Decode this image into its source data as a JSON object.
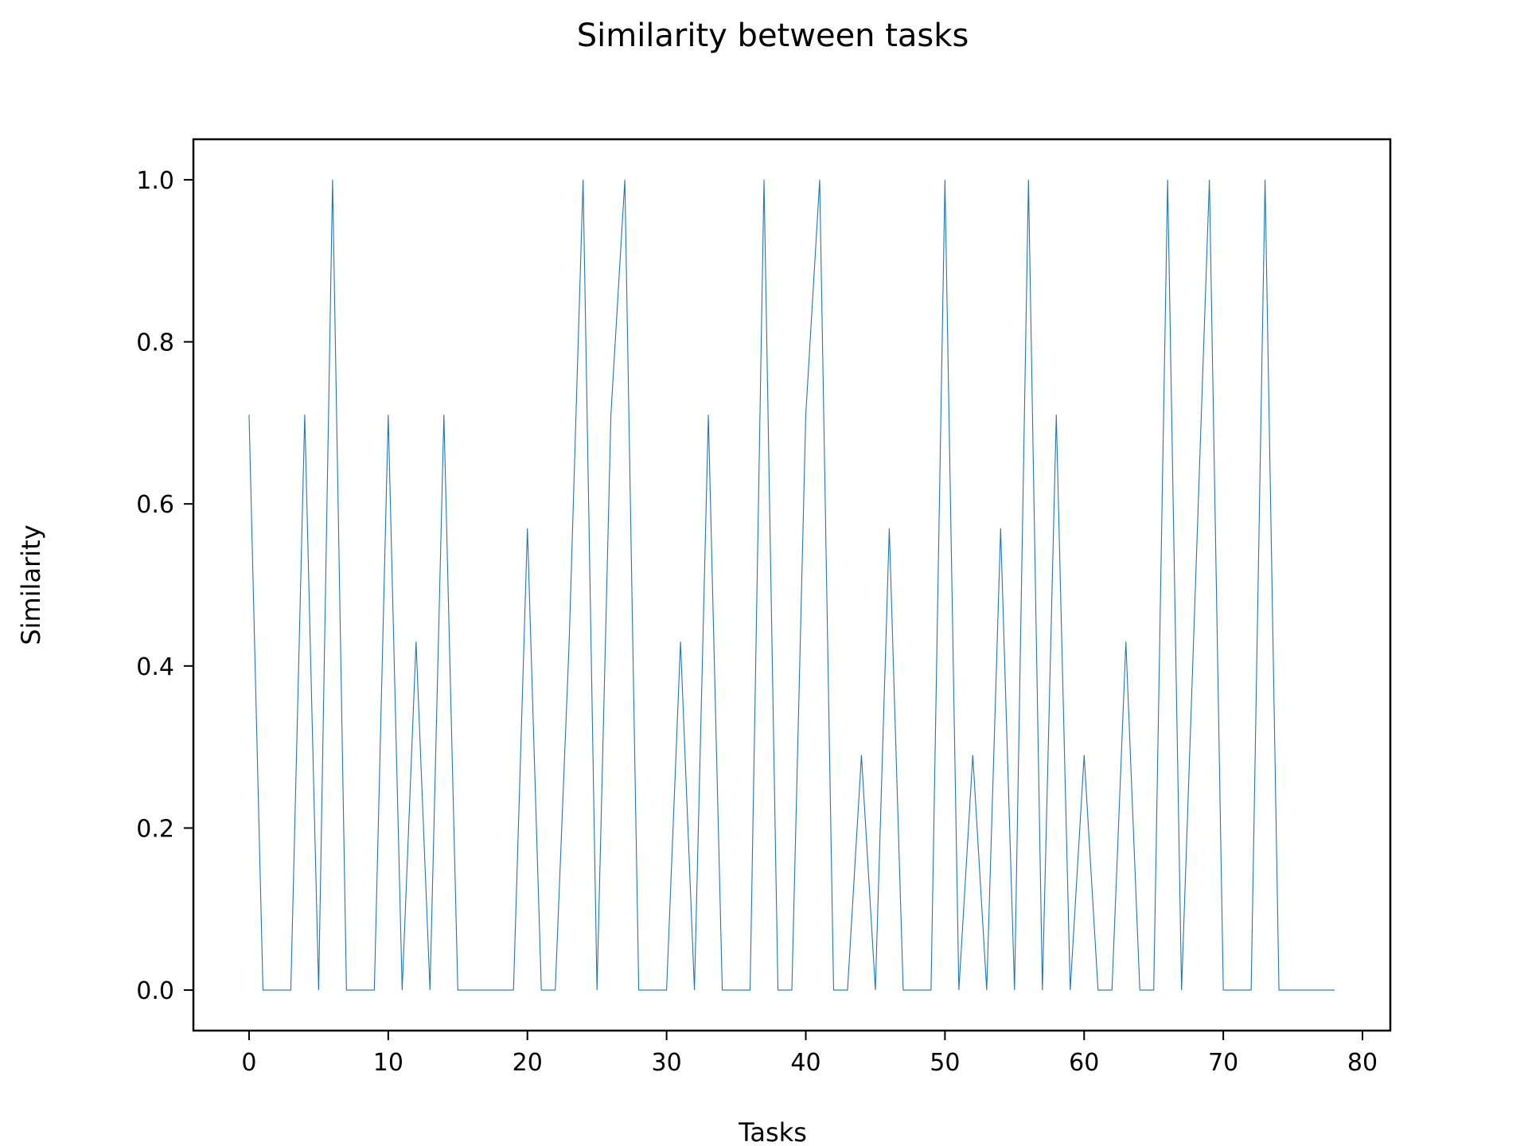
{
  "chart_data": {
    "type": "line",
    "title": "Similarity between tasks",
    "xlabel": "Tasks",
    "ylabel": "Similarity",
    "xlim": [
      -4,
      82
    ],
    "ylim": [
      -0.05,
      1.05
    ],
    "x_ticks": [
      0,
      10,
      20,
      30,
      40,
      50,
      60,
      70,
      80
    ],
    "y_ticks": [
      0.0,
      0.2,
      0.4,
      0.6,
      0.8,
      1.0
    ],
    "x_tick_labels": [
      "0",
      "10",
      "20",
      "30",
      "40",
      "50",
      "60",
      "70",
      "80"
    ],
    "y_tick_labels": [
      "0.0",
      "0.2",
      "0.4",
      "0.6",
      "0.8",
      "1.0"
    ],
    "grid": false,
    "line_color": "#1f77b4",
    "series": [
      {
        "x": [
          0,
          1,
          2,
          3,
          4,
          5,
          6,
          7,
          8,
          9,
          10,
          11,
          12,
          13,
          14,
          15,
          16,
          17,
          18,
          19,
          20,
          21,
          22,
          23,
          24,
          25,
          26,
          27,
          28,
          29,
          30,
          31,
          32,
          33,
          34,
          35,
          36,
          37,
          38,
          39,
          40,
          41,
          42,
          43,
          44,
          45,
          46,
          47,
          48,
          49,
          50,
          51,
          52,
          53,
          54,
          55,
          56,
          57,
          58,
          59,
          60,
          61,
          62,
          63,
          64,
          65,
          66,
          67,
          68,
          69,
          70,
          71,
          72,
          73,
          74,
          75,
          76,
          77,
          78
        ],
        "y": [
          0.71,
          0,
          0,
          0,
          0.71,
          0,
          1.0,
          0,
          0,
          0,
          0.71,
          0,
          0.43,
          0,
          0.71,
          0,
          0,
          0,
          0,
          0,
          0.57,
          0,
          0,
          0.43,
          1.0,
          0,
          0.71,
          1.0,
          0,
          0,
          0,
          0.43,
          0,
          0.71,
          0,
          0,
          0,
          1.0,
          0,
          0,
          0.71,
          1.0,
          0,
          0,
          0.29,
          0,
          0.57,
          0,
          0,
          0,
          1.0,
          0,
          0.29,
          0,
          0.57,
          0,
          1.0,
          0,
          0.71,
          0,
          0.29,
          0,
          0,
          0.43,
          0,
          0,
          1.0,
          0,
          0.5,
          1.0,
          0,
          0,
          0,
          1.0,
          0,
          0,
          0,
          0,
          0
        ]
      }
    ]
  }
}
